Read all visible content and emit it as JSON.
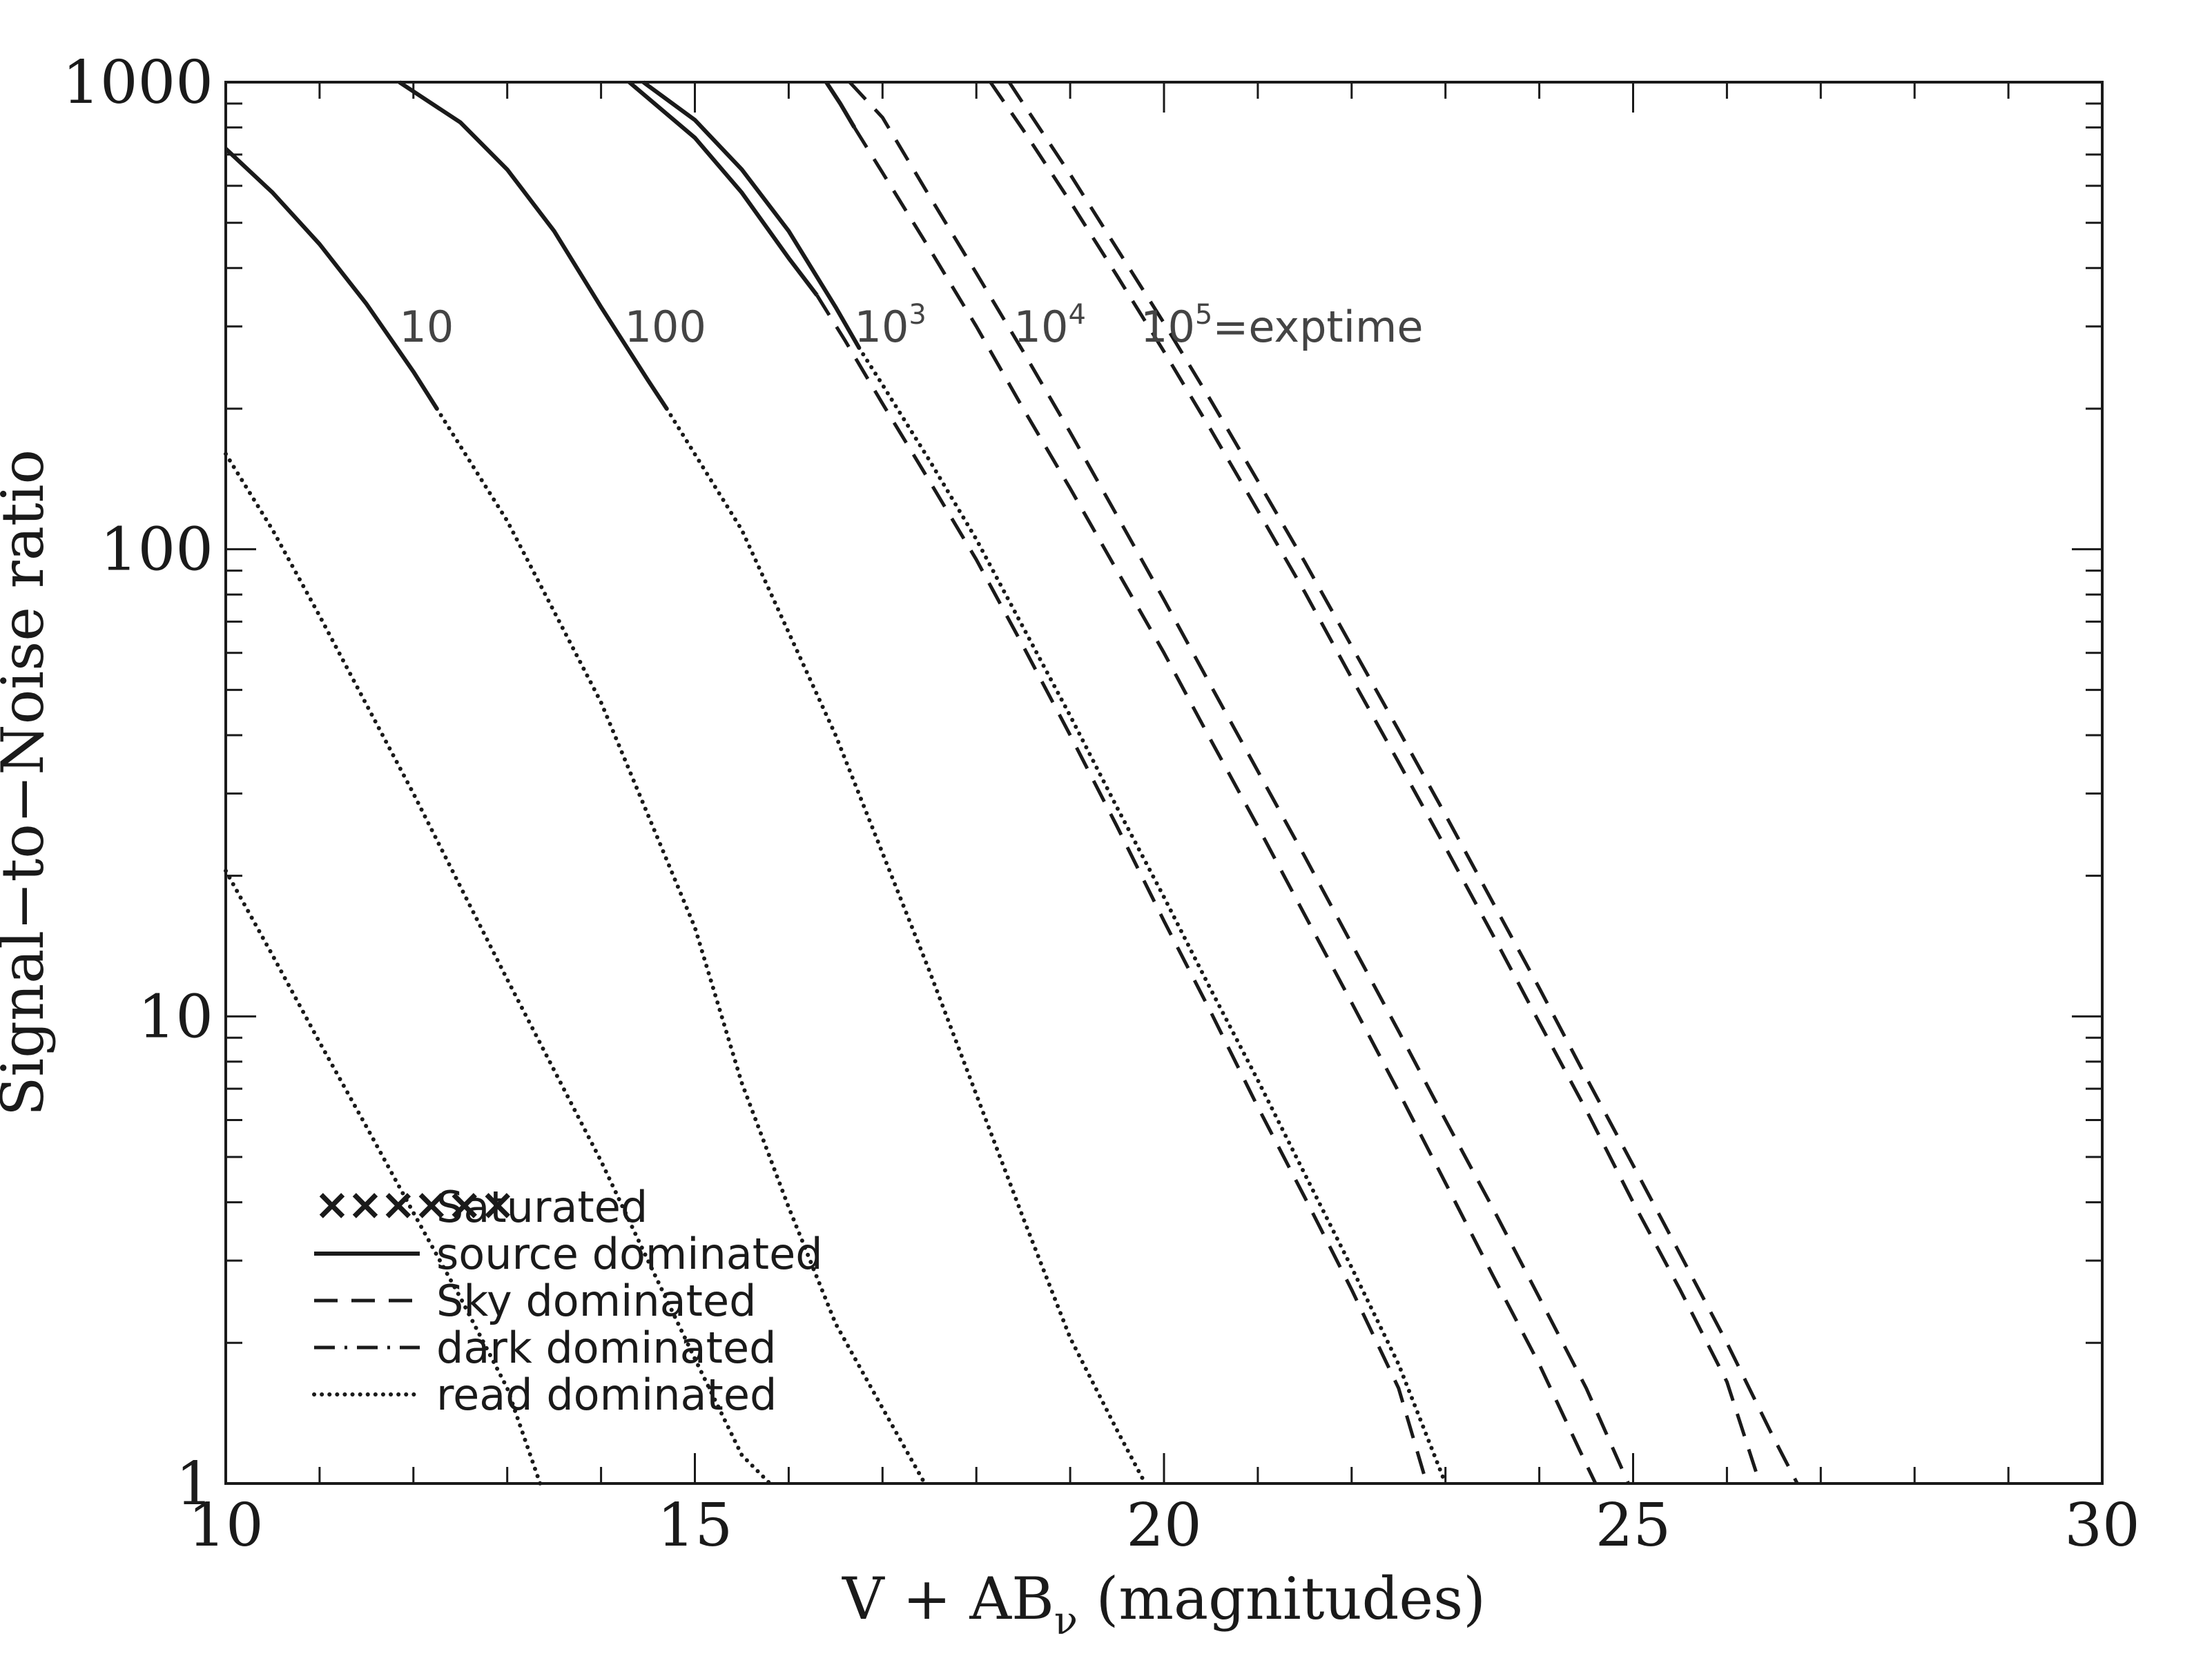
{
  "chart_data": {
    "type": "line",
    "title": "",
    "xlabel": "V + AB",
    "xlabel_subscript": "ν",
    "xlabel_suffix": " (magnitudes)",
    "ylabel": "Signal−to−Noise ratio",
    "xlim": [
      10,
      30
    ],
    "ylim": [
      1,
      1000
    ],
    "yscale": "log",
    "grid": false,
    "x_ticks": [
      "10",
      "15",
      "20",
      "25",
      "30"
    ],
    "y_ticks": [
      "1",
      "10",
      "100",
      "1000"
    ],
    "curve_labels": [
      {
        "base": "10",
        "exp": "",
        "suffix": "",
        "x": 11.85,
        "y": 300
      },
      {
        "base": "100",
        "exp": "",
        "suffix": "",
        "x": 14.25,
        "y": 300
      },
      {
        "base": "10",
        "exp": "3",
        "suffix": "",
        "x": 16.7,
        "y": 300
      },
      {
        "base": "10",
        "exp": "4",
        "suffix": "",
        "x": 18.4,
        "y": 300
      },
      {
        "base": "10",
        "exp": "5",
        "suffix": "=exptime",
        "x": 19.75,
        "y": 300
      }
    ],
    "series": [
      {
        "segments": [
          {
            "style": "solid",
            "points": [
              [
                10.0,
                720
              ],
              [
                10.5,
                580
              ],
              [
                11.0,
                450
              ],
              [
                11.5,
                335
              ],
              [
                12.0,
                240
              ],
              [
                12.25,
                200
              ]
            ]
          },
          {
            "style": "dotted",
            "points": [
              [
                12.25,
                200
              ],
              [
                13.0,
                115
              ],
              [
                14.0,
                47
              ],
              [
                15.0,
                15.5
              ],
              [
                15.5,
                7.2
              ],
              [
                16.0,
                3.9
              ],
              [
                16.5,
                2.2
              ],
              [
                17.0,
                1.45
              ],
              [
                17.45,
                1.0
              ]
            ]
          }
        ]
      },
      {
        "segments": [
          {
            "style": "solid",
            "points": [
              [
                11.85,
                1000
              ],
              [
                12.5,
                820
              ],
              [
                13.0,
                650
              ],
              [
                13.5,
                480
              ],
              [
                14.0,
                330
              ],
              [
                14.5,
                230
              ],
              [
                14.7,
                200
              ]
            ]
          },
          {
            "style": "dotted",
            "points": [
              [
                14.7,
                200
              ],
              [
                15.5,
                110
              ],
              [
                16.5,
                40
              ],
              [
                17.5,
                12.5
              ],
              [
                18.0,
                6.8
              ],
              [
                18.5,
                3.7
              ],
              [
                19.0,
                2.05
              ],
              [
                19.5,
                1.3
              ],
              [
                19.8,
                1.0
              ]
            ]
          }
        ]
      },
      {
        "segments": [
          {
            "style": "solid",
            "points": [
              [
                14.3,
                1000
              ],
              [
                15.0,
                760
              ],
              [
                15.5,
                580
              ],
              [
                16.0,
                420
              ],
              [
                16.3,
                350
              ]
            ]
          },
          {
            "style": "dashed",
            "points": [
              [
                16.3,
                350
              ],
              [
                16.6,
                280
              ],
              [
                17.0,
                205
              ],
              [
                17.5,
                140
              ],
              [
                18.0,
                95
              ],
              [
                18.5,
                62
              ],
              [
                19.0,
                40
              ],
              [
                19.5,
                25.5
              ],
              [
                20.0,
                16
              ],
              [
                20.5,
                10.2
              ],
              [
                21.0,
                6.4
              ],
              [
                21.5,
                4.1
              ],
              [
                22.0,
                2.6
              ],
              [
                22.5,
                1.6
              ],
              [
                22.8,
                1.0
              ]
            ]
          }
        ]
      },
      {
        "segments": [
          {
            "style": "solid",
            "points": [
              [
                14.45,
                1000
              ],
              [
                15.0,
                830
              ],
              [
                15.5,
                650
              ],
              [
                16.0,
                480
              ],
              [
                16.5,
                330
              ],
              [
                16.75,
                270
              ]
            ]
          },
          {
            "style": "dotted",
            "points": [
              [
                16.75,
                270
              ],
              [
                17.0,
                225
              ],
              [
                17.5,
                155
              ],
              [
                18.0,
                105
              ],
              [
                18.5,
                68
              ],
              [
                19.0,
                44
              ],
              [
                19.5,
                28
              ],
              [
                20.0,
                18
              ],
              [
                20.5,
                11.4
              ],
              [
                21.0,
                7.3
              ],
              [
                21.5,
                4.6
              ],
              [
                22.0,
                2.9
              ],
              [
                22.5,
                1.8
              ],
              [
                23.0,
                1.0
              ]
            ]
          }
        ]
      },
      {
        "segments": [
          {
            "style": "solid",
            "points": [
              [
                16.4,
                1000
              ],
              [
                16.55,
                900
              ],
              [
                16.7,
                800
              ]
            ]
          },
          {
            "style": "dashed",
            "points": [
              [
                16.7,
                800
              ],
              [
                17.0,
                640
              ],
              [
                17.5,
                440
              ],
              [
                18.0,
                300
              ],
              [
                18.5,
                200
              ],
              [
                19.0,
                135
              ],
              [
                19.5,
                90
              ],
              [
                20.0,
                60
              ],
              [
                20.5,
                39
              ],
              [
                21.0,
                25.5
              ],
              [
                21.5,
                16.5
              ],
              [
                22.0,
                10.7
              ],
              [
                22.5,
                6.9
              ],
              [
                23.0,
                4.4
              ],
              [
                23.5,
                2.8
              ],
              [
                24.0,
                1.8
              ],
              [
                24.5,
                1.1
              ],
              [
                24.6,
                1.0
              ]
            ]
          }
        ]
      },
      {
        "segments": [
          {
            "style": "dashed",
            "points": [
              [
                16.65,
                1000
              ],
              [
                17.0,
                840
              ],
              [
                17.5,
                570
              ],
              [
                18.0,
                390
              ],
              [
                18.5,
                265
              ],
              [
                19.0,
                178
              ],
              [
                19.5,
                118
              ],
              [
                20.0,
                78
              ],
              [
                20.5,
                51
              ],
              [
                21.0,
                33.5
              ],
              [
                21.5,
                22
              ],
              [
                22.0,
                14.3
              ],
              [
                22.5,
                9.3
              ],
              [
                23.0,
                6.0
              ],
              [
                23.5,
                3.9
              ],
              [
                24.0,
                2.5
              ],
              [
                24.5,
                1.6
              ],
              [
                24.95,
                1.0
              ]
            ]
          }
        ]
      },
      {
        "segments": [
          {
            "style": "dashed",
            "points": [
              [
                18.15,
                1000
              ],
              [
                18.5,
                790
              ],
              [
                19.0,
                555
              ],
              [
                19.5,
                385
              ],
              [
                20.0,
                265
              ],
              [
                20.5,
                180
              ],
              [
                21.0,
                121
              ],
              [
                21.5,
                81
              ],
              [
                22.0,
                53
              ],
              [
                22.5,
                35
              ],
              [
                23.0,
                23
              ],
              [
                23.5,
                15
              ],
              [
                24.0,
                9.7
              ],
              [
                24.5,
                6.3
              ],
              [
                25.0,
                4.0
              ],
              [
                25.5,
                2.6
              ],
              [
                26.0,
                1.65
              ],
              [
                26.35,
                1.0
              ]
            ]
          }
        ]
      },
      {
        "segments": [
          {
            "style": "dashed",
            "points": [
              [
                18.35,
                1000
              ],
              [
                18.5,
                900
              ],
              [
                19.0,
                635
              ],
              [
                19.5,
                440
              ],
              [
                20.0,
                305
              ],
              [
                20.5,
                208
              ],
              [
                21.0,
                140
              ],
              [
                21.5,
                94
              ],
              [
                22.0,
                62
              ],
              [
                22.5,
                41
              ],
              [
                23.0,
                27
              ],
              [
                23.5,
                17.6
              ],
              [
                24.0,
                11.5
              ],
              [
                24.5,
                7.4
              ],
              [
                25.0,
                4.8
              ],
              [
                25.5,
                3.1
              ],
              [
                26.0,
                2.0
              ],
              [
                26.5,
                1.25
              ],
              [
                26.75,
                1.0
              ]
            ]
          }
        ]
      },
      {
        "segments": [
          {
            "style": "dotted",
            "points": [
              [
                10.0,
                160
              ],
              [
                10.5,
                110
              ],
              [
                11.0,
                72
              ],
              [
                12.0,
                30
              ],
              [
                13.0,
                12
              ],
              [
                14.0,
                4.9
              ],
              [
                14.5,
                3.0
              ],
              [
                15.0,
                1.85
              ],
              [
                15.5,
                1.15
              ],
              [
                15.8,
                1.0
              ]
            ]
          }
        ]
      },
      {
        "segments": [
          {
            "style": "dotted",
            "points": [
              [
                10.0,
                20.5
              ],
              [
                10.5,
                13.5
              ],
              [
                11.0,
                8.8
              ],
              [
                11.5,
                5.8
              ],
              [
                12.0,
                3.8
              ],
              [
                12.5,
                2.5
              ],
              [
                13.0,
                1.6
              ],
              [
                13.35,
                1.0
              ]
            ]
          }
        ]
      }
    ],
    "legend": {
      "position": "bottom-left",
      "entries": [
        {
          "label": "Saturated",
          "style": "crosses"
        },
        {
          "label": "source dominated",
          "style": "solid"
        },
        {
          "label": "Sky dominated",
          "style": "dashed"
        },
        {
          "label": "dark dominated",
          "style": "dashdot"
        },
        {
          "label": "read dominated",
          "style": "dotted"
        }
      ]
    }
  }
}
